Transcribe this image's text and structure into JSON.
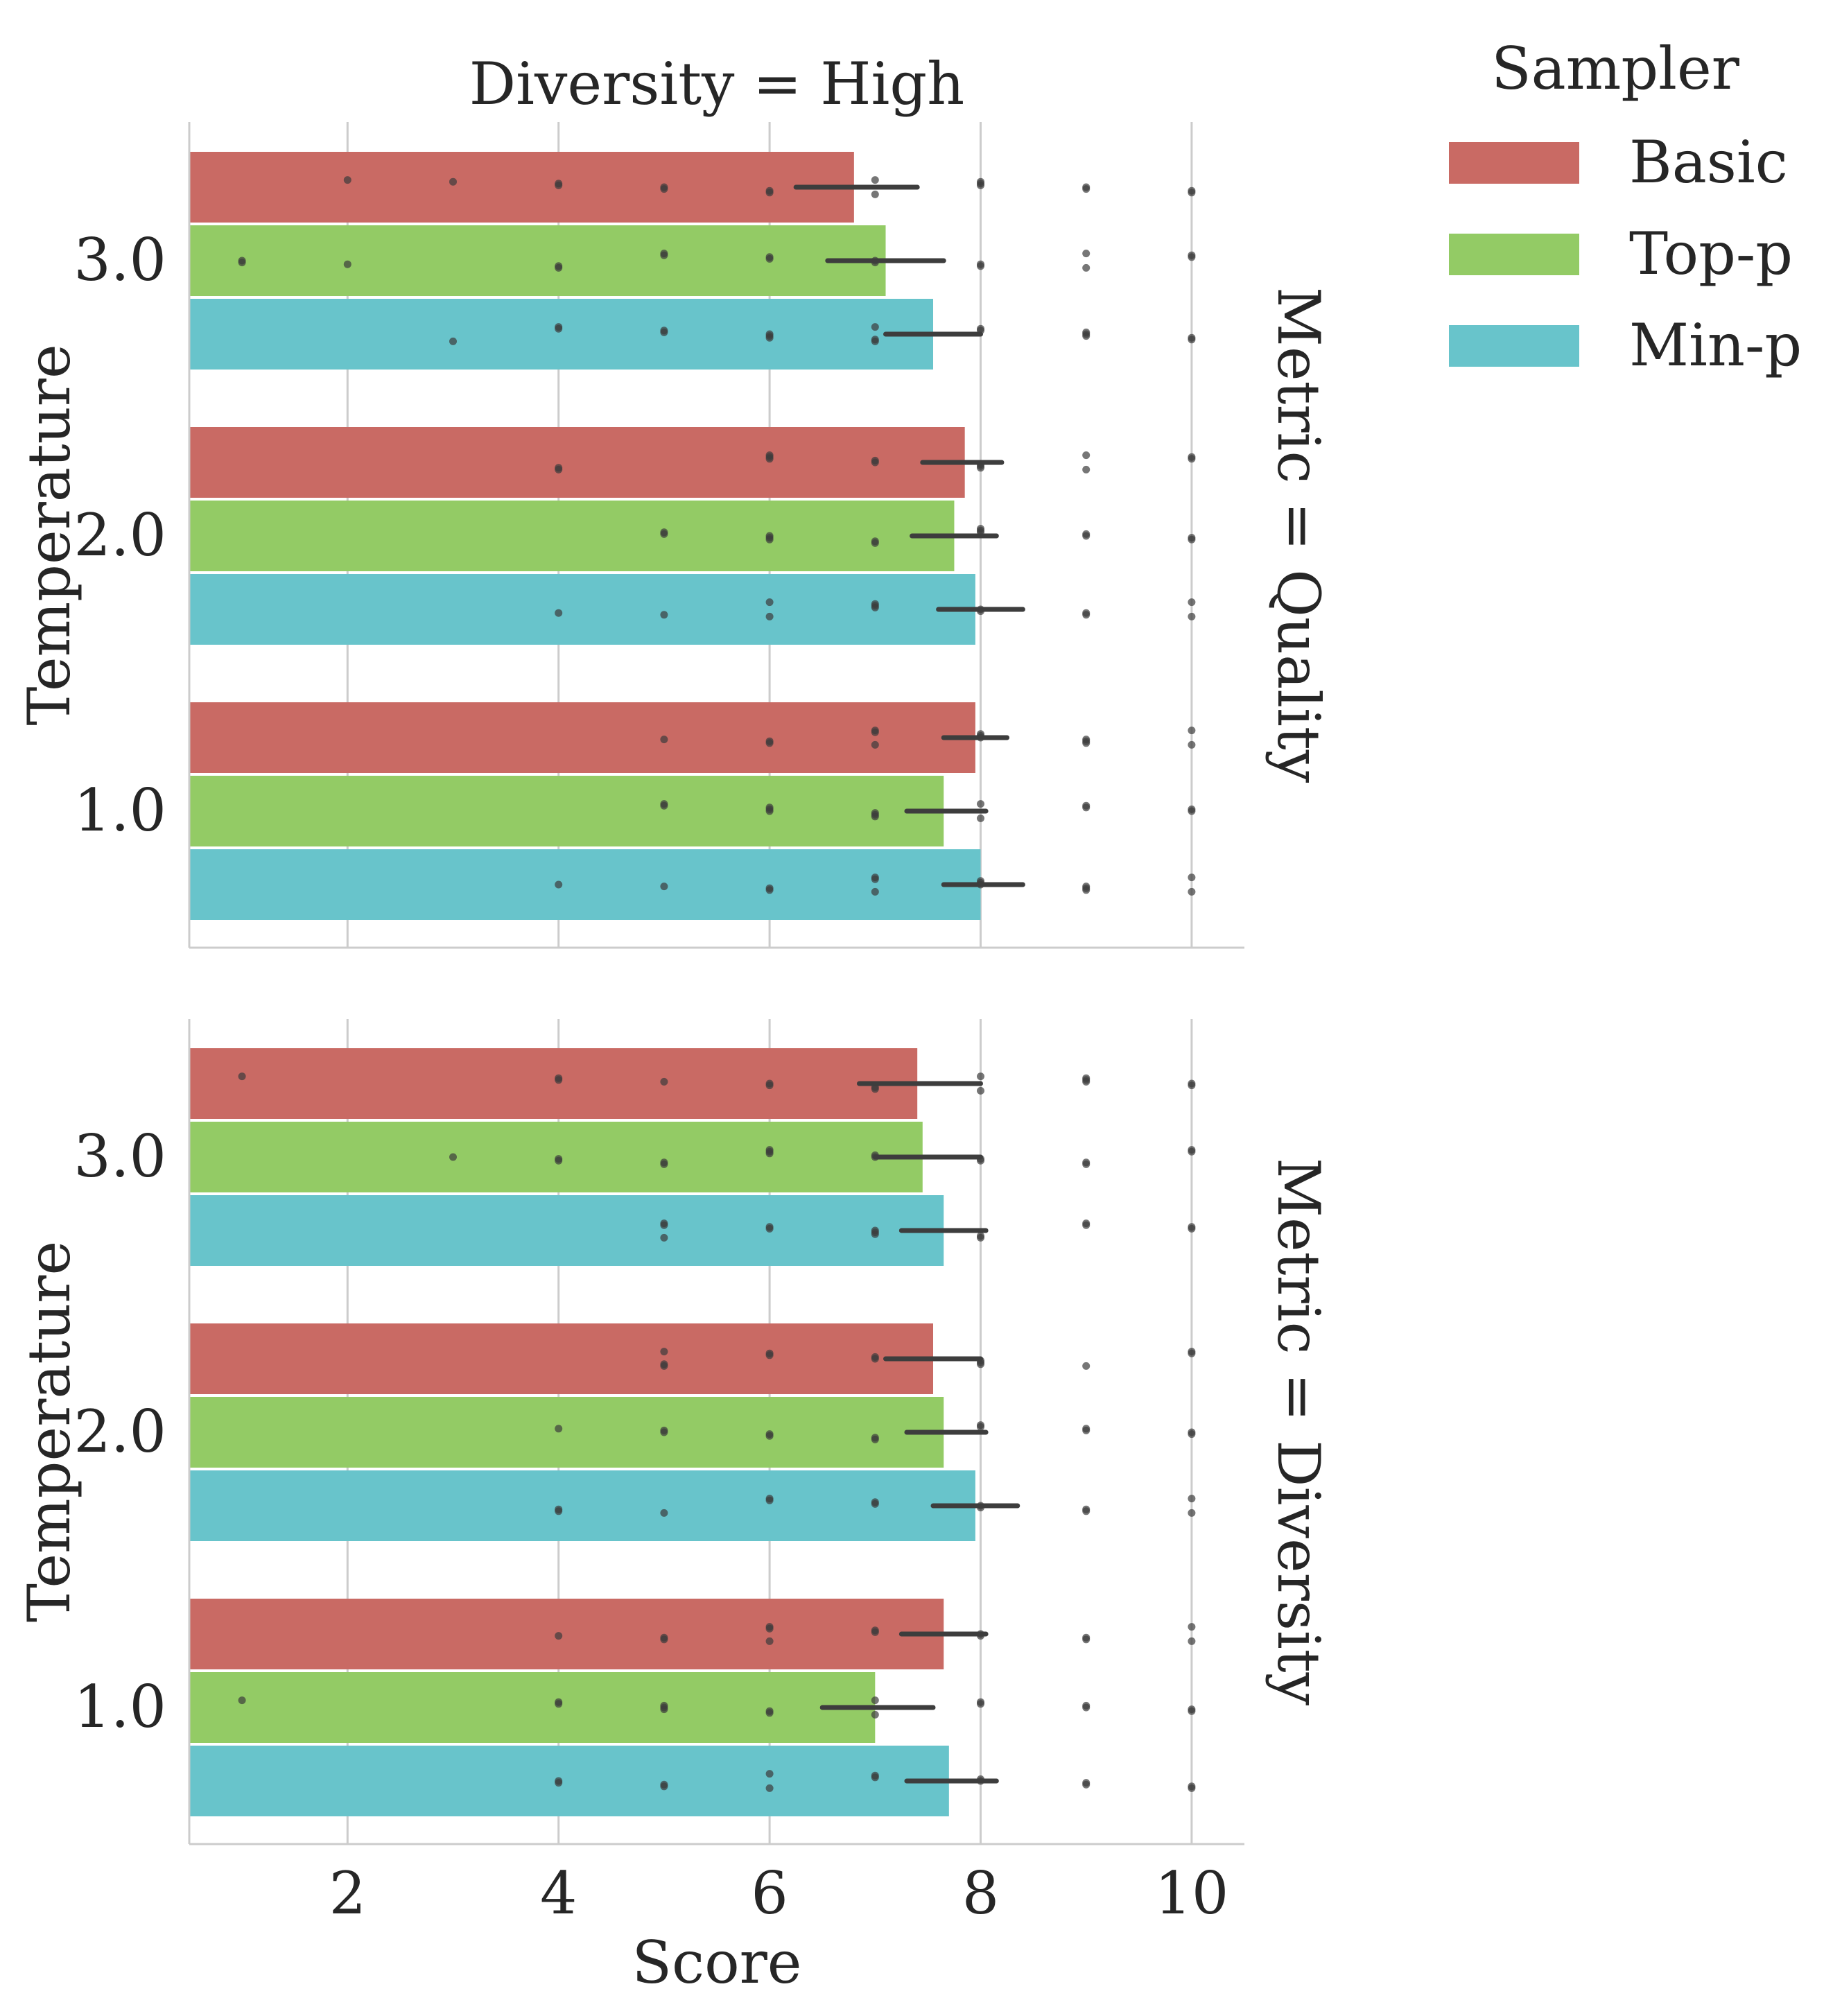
{
  "chart_data": [
    {
      "type": "bar",
      "orientation": "horizontal",
      "title": "Diversity = High",
      "facet_label": "Metric = Quality",
      "ylabel": "Temperature",
      "xlabel": "",
      "categories": [
        "3.0",
        "2.0",
        "1.0"
      ],
      "xlim": [
        0.5,
        10.5
      ],
      "xticks": [
        2,
        4,
        6,
        8,
        10
      ],
      "grid": "x",
      "series": [
        {
          "name": "Basic",
          "color": "#c96a64",
          "values": [
            6.8,
            7.85,
            7.95
          ],
          "ci": [
            [
              6.25,
              7.4
            ],
            [
              7.45,
              8.2
            ],
            [
              7.65,
              8.25
            ]
          ],
          "points": [
            [
              2,
              3,
              4,
              4,
              5,
              5,
              6,
              6,
              7,
              7,
              8,
              8,
              8,
              9,
              9,
              10,
              10
            ],
            [
              4,
              4,
              6,
              6,
              6,
              7,
              7,
              8,
              8,
              8,
              9,
              9,
              10,
              10
            ],
            [
              5,
              6,
              6,
              7,
              7,
              7,
              8,
              8,
              8,
              9,
              9,
              9,
              10,
              10
            ]
          ]
        },
        {
          "name": "Top-p",
          "color": "#93cb65",
          "values": [
            7.1,
            7.75,
            7.65
          ],
          "ci": [
            [
              6.55,
              7.65
            ],
            [
              7.35,
              8.15
            ],
            [
              7.3,
              8.05
            ]
          ],
          "points": [
            [
              1,
              1,
              2,
              4,
              4,
              5,
              5,
              6,
              6,
              7,
              7,
              8,
              8,
              9,
              9,
              10,
              10
            ],
            [
              5,
              5,
              6,
              6,
              6,
              7,
              7,
              8,
              8,
              8,
              9,
              9,
              10,
              10
            ],
            [
              5,
              5,
              6,
              6,
              6,
              7,
              7,
              7,
              8,
              8,
              9,
              9,
              10,
              10
            ]
          ]
        },
        {
          "name": "Min-p",
          "color": "#68c4cb",
          "values": [
            7.55,
            7.95,
            8.0
          ],
          "ci": [
            [
              7.1,
              8.0
            ],
            [
              7.6,
              8.4
            ],
            [
              7.65,
              8.4
            ]
          ],
          "points": [
            [
              3,
              4,
              4,
              5,
              5,
              6,
              6,
              6,
              7,
              7,
              7,
              8,
              8,
              9,
              9,
              9,
              10,
              10
            ],
            [
              4,
              5,
              6,
              6,
              7,
              7,
              7,
              8,
              8,
              9,
              9,
              10,
              10
            ],
            [
              4,
              5,
              6,
              6,
              7,
              7,
              7,
              8,
              8,
              8,
              9,
              9,
              9,
              10,
              10
            ]
          ]
        }
      ]
    },
    {
      "type": "bar",
      "orientation": "horizontal",
      "title": "",
      "facet_label": "Metric = Diversity",
      "ylabel": "Temperature",
      "xlabel": "Score",
      "categories": [
        "3.0",
        "2.0",
        "1.0"
      ],
      "xlim": [
        0.5,
        10.5
      ],
      "xticks": [
        2,
        4,
        6,
        8,
        10
      ],
      "grid": "x",
      "series": [
        {
          "name": "Basic",
          "color": "#c96a64",
          "values": [
            7.4,
            7.55,
            7.65
          ],
          "ci": [
            [
              6.85,
              8.0
            ],
            [
              7.1,
              8.0
            ],
            [
              7.25,
              8.05
            ]
          ],
          "points": [
            [
              1,
              4,
              4,
              5,
              6,
              6,
              7,
              7,
              8,
              8,
              9,
              9,
              9,
              10,
              10
            ],
            [
              5,
              5,
              5,
              6,
              6,
              7,
              7,
              8,
              8,
              8,
              9,
              10,
              10
            ],
            [
              4,
              5,
              5,
              6,
              6,
              6,
              7,
              7,
              8,
              8,
              9,
              9,
              10,
              10
            ]
          ]
        },
        {
          "name": "Top-p",
          "color": "#93cb65",
          "values": [
            7.45,
            7.65,
            7.0
          ],
          "ci": [
            [
              7.0,
              8.0
            ],
            [
              7.3,
              8.05
            ],
            [
              6.5,
              7.55
            ]
          ],
          "points": [
            [
              3,
              4,
              4,
              5,
              5,
              6,
              6,
              6,
              7,
              7,
              8,
              8,
              9,
              9,
              10,
              10
            ],
            [
              4,
              5,
              5,
              6,
              6,
              7,
              7,
              8,
              8,
              9,
              9,
              10,
              10
            ],
            [
              1,
              4,
              4,
              5,
              5,
              5,
              6,
              6,
              7,
              7,
              8,
              8,
              9,
              9,
              10,
              10
            ]
          ]
        },
        {
          "name": "Min-p",
          "color": "#68c4cb",
          "values": [
            7.65,
            7.95,
            7.7
          ],
          "ci": [
            [
              7.25,
              8.05
            ],
            [
              7.55,
              8.35
            ],
            [
              7.3,
              8.15
            ]
          ],
          "points": [
            [
              5,
              5,
              5,
              6,
              6,
              7,
              7,
              7,
              8,
              8,
              9,
              9,
              10,
              10
            ],
            [
              4,
              4,
              5,
              6,
              6,
              7,
              7,
              8,
              8,
              9,
              9,
              10,
              10
            ],
            [
              4,
              4,
              5,
              5,
              6,
              6,
              7,
              7,
              8,
              8,
              9,
              9,
              10,
              10
            ]
          ]
        }
      ]
    }
  ],
  "legend": {
    "title": "Sampler",
    "placement": "right",
    "entries": [
      {
        "label": "Basic",
        "color": "#c96a64"
      },
      {
        "label": "Top-p",
        "color": "#93cb65"
      },
      {
        "label": "Min-p",
        "color": "#68c4cb"
      }
    ]
  }
}
